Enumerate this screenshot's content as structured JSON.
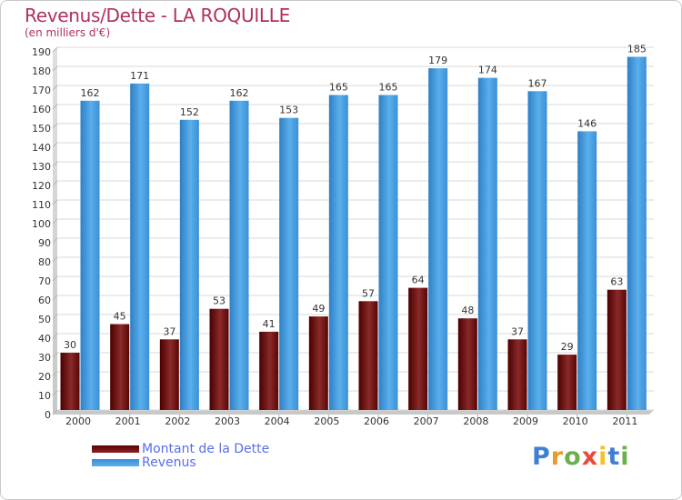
{
  "chart_data": {
    "type": "bar",
    "title": "Revenus/Dette - LA ROQUILLE",
    "subtitle": "(en milliers d'€)",
    "xlabel": "",
    "ylabel": "",
    "ylim": [
      0,
      190
    ],
    "yticks": [
      0,
      10,
      20,
      30,
      40,
      50,
      60,
      70,
      80,
      90,
      100,
      110,
      120,
      130,
      140,
      150,
      160,
      170,
      180,
      190
    ],
    "grid": true,
    "categories": [
      "2000",
      "2001",
      "2002",
      "2003",
      "2004",
      "2005",
      "2006",
      "2007",
      "2008",
      "2009",
      "2010",
      "2011"
    ],
    "series": [
      {
        "name": "Montant de la Dette",
        "values": [
          30,
          45,
          37,
          53,
          41,
          49,
          57,
          64,
          48,
          37,
          29,
          63
        ],
        "color": "#7a1e1e"
      },
      {
        "name": "Revenus",
        "values": [
          162,
          171,
          152,
          162,
          153,
          165,
          165,
          179,
          174,
          167,
          146,
          185
        ],
        "color": "#4aa3e8"
      }
    ],
    "legend_position": "bottom-left"
  },
  "brand": {
    "letters": [
      "P",
      "r",
      "o",
      "x",
      "i",
      "t",
      "i"
    ],
    "colors": [
      "#3f7fd1",
      "#e89a2b",
      "#6ab04c",
      "#e84b3c",
      "#f2c12e",
      "#3f7fd1",
      "#6ab04c"
    ]
  }
}
